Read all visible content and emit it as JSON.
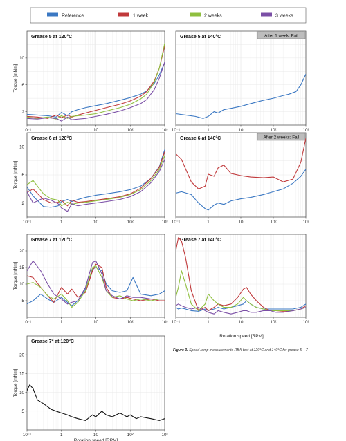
{
  "figure": {
    "caption_label": "Figure 3.",
    "caption_text": "Speed ramp measurements RBA-test at 120°C and 140°C for grease 5 – 7",
    "xlabel": "Rotation speed [RPM]"
  },
  "legend": [
    {
      "name": "Reference",
      "color": "#3b78c3"
    },
    {
      "name": "1 week",
      "color": "#c0393b"
    },
    {
      "name": "2 weeks",
      "color": "#8fbf3f"
    },
    {
      "name": "3 weeks",
      "color": "#7b4fa6"
    }
  ],
  "chart_data": [
    {
      "type": "line",
      "title": "Grease 5 at 120°C",
      "ylabel": "Torque [mNm]",
      "xlabel": "",
      "xscale": "log",
      "xlim": [
        0.1,
        1000
      ],
      "ylim": [
        0,
        14
      ],
      "xticks": [
        "10⁻¹",
        "1",
        "10",
        "10²",
        "10³"
      ],
      "yticks": [
        2,
        6,
        10
      ],
      "grid": true,
      "x": [
        0.1,
        0.2,
        0.4,
        0.7,
        1,
        1.5,
        2,
        3,
        5,
        10,
        20,
        50,
        100,
        200,
        300,
        500,
        700,
        1000
      ],
      "series": [
        {
          "name": "Reference",
          "values": [
            1.6,
            1.5,
            1.4,
            1.2,
            1.9,
            1.4,
            2.0,
            2.3,
            2.6,
            2.9,
            3.2,
            3.7,
            4.1,
            4.6,
            5.1,
            6.2,
            7.5,
            9.3
          ]
        },
        {
          "name": "1 week",
          "values": [
            1.3,
            1.2,
            1.0,
            1.5,
            1.1,
            1.5,
            1.2,
            1.5,
            1.8,
            2.2,
            2.6,
            3.1,
            3.6,
            4.3,
            5.0,
            6.6,
            8.5,
            11.8
          ]
        },
        {
          "name": "2 weeks",
          "values": [
            1.2,
            1.0,
            1.2,
            0.9,
            1.4,
            1.0,
            1.3,
            1.4,
            1.5,
            1.7,
            2.1,
            2.6,
            3.1,
            3.9,
            4.6,
            6.4,
            8.5,
            12.2
          ]
        },
        {
          "name": "3 weeks",
          "values": [
            1.0,
            0.9,
            1.1,
            1.0,
            0.6,
            1.2,
            0.8,
            0.9,
            1.0,
            1.3,
            1.6,
            2.1,
            2.6,
            3.2,
            3.8,
            5.3,
            7.0,
            9.4
          ]
        }
      ]
    },
    {
      "type": "line",
      "title": "Grease 5 at 140°C",
      "ylabel": "",
      "xlabel": "",
      "annotation": "After 1 week: Fail",
      "xscale": "log",
      "xlim": [
        0.1,
        1000
      ],
      "ylim": [
        0,
        14
      ],
      "xticks": [
        "10⁻¹",
        "1",
        "10",
        "10²",
        "10³"
      ],
      "yticks": [],
      "grid": true,
      "x": [
        0.1,
        0.2,
        0.4,
        0.7,
        1,
        1.5,
        2,
        3,
        5,
        10,
        20,
        50,
        100,
        200,
        300,
        500,
        700,
        1000
      ],
      "series": [
        {
          "name": "Reference",
          "values": [
            1.7,
            1.5,
            1.3,
            1.0,
            1.3,
            2.0,
            1.8,
            2.3,
            2.5,
            2.8,
            3.2,
            3.7,
            4.0,
            4.4,
            4.6,
            5.0,
            6.0,
            7.6
          ]
        }
      ]
    },
    {
      "type": "line",
      "title": "Grease 6 at 120°C",
      "ylabel": "Torque [mNm]",
      "xlabel": "",
      "xscale": "log",
      "xlim": [
        0.1,
        1000
      ],
      "ylim": [
        0,
        12
      ],
      "xticks": [
        "10⁻¹",
        "1",
        "10",
        "10²",
        "10³"
      ],
      "yticks": [
        2,
        6,
        10
      ],
      "grid": true,
      "x": [
        0.1,
        0.15,
        0.3,
        0.5,
        0.8,
        1,
        1.5,
        2,
        3,
        5,
        10,
        20,
        50,
        100,
        200,
        400,
        700,
        1000
      ],
      "series": [
        {
          "name": "Reference",
          "values": [
            4.3,
            3.0,
            1.5,
            1.4,
            1.6,
            2.2,
            2.5,
            2.2,
            2.5,
            2.8,
            3.1,
            3.3,
            3.6,
            3.9,
            4.4,
            5.5,
            7.2,
            9.6
          ]
        },
        {
          "name": "1 week",
          "values": [
            3.5,
            4.0,
            2.5,
            2.0,
            2.1,
            2.4,
            1.6,
            2.4,
            2.1,
            2.2,
            2.4,
            2.6,
            2.9,
            3.3,
            4.1,
            5.5,
            7.1,
            9.3
          ]
        },
        {
          "name": "2 weeks",
          "values": [
            4.6,
            5.2,
            3.3,
            2.6,
            2.4,
            1.6,
            2.1,
            1.8,
            2.0,
            2.1,
            2.3,
            2.5,
            2.8,
            3.2,
            3.9,
            5.2,
            6.8,
            8.8
          ]
        },
        {
          "name": "3 weeks",
          "values": [
            3.6,
            2.0,
            2.7,
            2.4,
            1.9,
            1.3,
            0.8,
            1.9,
            1.6,
            1.8,
            2.0,
            2.2,
            2.5,
            2.9,
            3.6,
            4.9,
            6.5,
            8.2
          ]
        }
      ]
    },
    {
      "type": "line",
      "title": "Grease 6 at 140°C",
      "ylabel": "",
      "xlabel": "",
      "annotation": "After 2 weeks: Fail",
      "xscale": "log",
      "xlim": [
        0.1,
        1000
      ],
      "ylim": [
        0,
        12
      ],
      "xticks": [
        "10⁻¹",
        "1",
        "10",
        "10²",
        "10³"
      ],
      "yticks": [],
      "grid": true,
      "x": [
        0.1,
        0.15,
        0.3,
        0.5,
        0.8,
        1,
        1.5,
        2,
        3,
        5,
        10,
        20,
        50,
        100,
        200,
        400,
        700,
        1000
      ],
      "series": [
        {
          "name": "Reference",
          "values": [
            3.4,
            3.6,
            3.2,
            2.0,
            1.2,
            1.0,
            1.7,
            2.0,
            1.8,
            2.3,
            2.6,
            2.8,
            3.2,
            3.6,
            4.0,
            4.8,
            5.8,
            6.8
          ]
        },
        {
          "name": "1 week",
          "values": [
            9.0,
            8.2,
            5.0,
            4.0,
            4.4,
            6.1,
            5.8,
            7.0,
            7.4,
            6.2,
            5.9,
            5.7,
            5.6,
            5.7,
            5.0,
            5.4,
            7.8,
            11.2
          ]
        }
      ]
    },
    {
      "type": "line",
      "title": "Grease 7 at 120°C",
      "ylabel": "Torque [mNm]",
      "xlabel": "",
      "xscale": "log",
      "xlim": [
        0.1,
        1000
      ],
      "ylim": [
        0,
        25
      ],
      "xticks": [
        "10⁻¹",
        "1",
        "10",
        "10²",
        "10³"
      ],
      "yticks": [
        5,
        10,
        15,
        20
      ],
      "grid": true,
      "x": [
        0.1,
        0.15,
        0.25,
        0.4,
        0.6,
        1,
        1.5,
        2,
        3,
        5,
        8,
        10,
        15,
        20,
        30,
        50,
        80,
        120,
        200,
        400,
        700,
        1000
      ],
      "series": [
        {
          "name": "Reference",
          "values": [
            4.0,
            5.0,
            7.0,
            5.5,
            4.5,
            6.0,
            4.5,
            3.5,
            5.0,
            8.5,
            14.5,
            15.0,
            14.0,
            10.0,
            8.0,
            7.5,
            8.0,
            12.0,
            7.0,
            6.5,
            7.0,
            8.0
          ]
        },
        {
          "name": "1 week",
          "values": [
            12.5,
            12.0,
            9.0,
            6.5,
            4.5,
            9.0,
            7.0,
            8.5,
            6.0,
            7.5,
            14.0,
            16.0,
            15.0,
            9.0,
            6.0,
            5.5,
            6.0,
            5.5,
            5.0,
            5.5,
            5.0,
            5.0
          ]
        },
        {
          "name": "2 weeks",
          "values": [
            10.0,
            10.5,
            9.0,
            6.5,
            5.5,
            7.0,
            5.0,
            3.0,
            4.5,
            8.0,
            15.0,
            15.5,
            12.0,
            8.0,
            6.0,
            6.5,
            5.5,
            5.0,
            5.5,
            5.0,
            5.5,
            5.5
          ]
        },
        {
          "name": "3 weeks",
          "values": [
            14.0,
            17.0,
            14.0,
            10.0,
            7.0,
            5.5,
            4.0,
            4.5,
            5.0,
            9.0,
            16.5,
            17.0,
            13.0,
            8.0,
            6.5,
            5.5,
            6.5,
            6.0,
            6.0,
            5.5,
            5.5,
            5.5
          ]
        }
      ]
    },
    {
      "type": "line",
      "title": "Grease 7 at 140°C",
      "ylabel": "",
      "xlabel": "",
      "xscale": "log",
      "xlim": [
        0.1,
        1000
      ],
      "ylim": [
        0,
        25
      ],
      "xticks": [
        "10⁻¹",
        "1",
        "10",
        "10²",
        "10³"
      ],
      "yticks": [],
      "grid": true,
      "x": [
        0.1,
        0.12,
        0.15,
        0.2,
        0.3,
        0.5,
        0.8,
        1,
        1.5,
        2,
        3,
        5,
        8,
        12,
        15,
        20,
        30,
        50,
        80,
        120,
        200,
        400,
        700,
        1000
      ],
      "series": [
        {
          "name": "Reference",
          "values": [
            3.0,
            2.5,
            2.8,
            2.5,
            2.0,
            1.8,
            2.5,
            2.0,
            2.5,
            3.0,
            2.5,
            3.0,
            3.5,
            4.0,
            5.0,
            4.0,
            3.0,
            2.5,
            2.5,
            2.5,
            2.5,
            2.5,
            3.0,
            4.0
          ]
        },
        {
          "name": "1 week",
          "values": [
            20.0,
            24.0,
            23.0,
            18.0,
            8.0,
            2.0,
            3.0,
            2.0,
            3.0,
            4.0,
            3.5,
            4.0,
            6.0,
            8.5,
            9.0,
            7.0,
            5.0,
            3.0,
            2.0,
            2.0,
            1.8,
            2.0,
            2.5,
            3.5
          ]
        },
        {
          "name": "2 weeks",
          "values": [
            6.0,
            9.0,
            14.0,
            10.0,
            4.0,
            2.0,
            4.0,
            7.0,
            5.0,
            4.0,
            3.0,
            3.0,
            4.0,
            6.0,
            5.0,
            4.0,
            3.0,
            2.5,
            2.0,
            2.0,
            2.0,
            2.0,
            2.5,
            3.0
          ]
        },
        {
          "name": "3 weeks",
          "values": [
            3.5,
            4.0,
            3.5,
            3.0,
            2.5,
            3.0,
            2.0,
            1.5,
            1.0,
            2.0,
            1.5,
            1.0,
            1.5,
            2.0,
            2.0,
            1.5,
            1.5,
            2.0,
            2.0,
            1.5,
            1.5,
            2.0,
            2.5,
            3.0
          ]
        }
      ]
    },
    {
      "type": "line",
      "title": "Grease 7* at 120°C",
      "ylabel": "Torque [mNm]",
      "xlabel": "Rotation speed [RPM]",
      "xscale": "log",
      "xlim": [
        0.1,
        1000
      ],
      "ylim": [
        0,
        25
      ],
      "xticks": [
        "10⁻¹",
        "1",
        "10",
        "10²",
        "10³"
      ],
      "yticks": [
        5,
        10,
        15,
        20
      ],
      "grid": true,
      "x": [
        0.1,
        0.12,
        0.15,
        0.2,
        0.3,
        0.5,
        0.7,
        1,
        1.5,
        2,
        3,
        5,
        8,
        10,
        15,
        20,
        30,
        50,
        80,
        100,
        150,
        200,
        400,
        700,
        1000
      ],
      "series": [
        {
          "name": "",
          "color": "#111111",
          "values": [
            10.5,
            12.0,
            11.0,
            8.0,
            7.0,
            5.5,
            5.0,
            4.5,
            4.0,
            3.5,
            3.0,
            2.5,
            4.0,
            3.5,
            5.0,
            4.0,
            3.5,
            4.5,
            3.5,
            4.0,
            3.0,
            3.5,
            3.0,
            2.5,
            3.0
          ]
        }
      ]
    }
  ]
}
